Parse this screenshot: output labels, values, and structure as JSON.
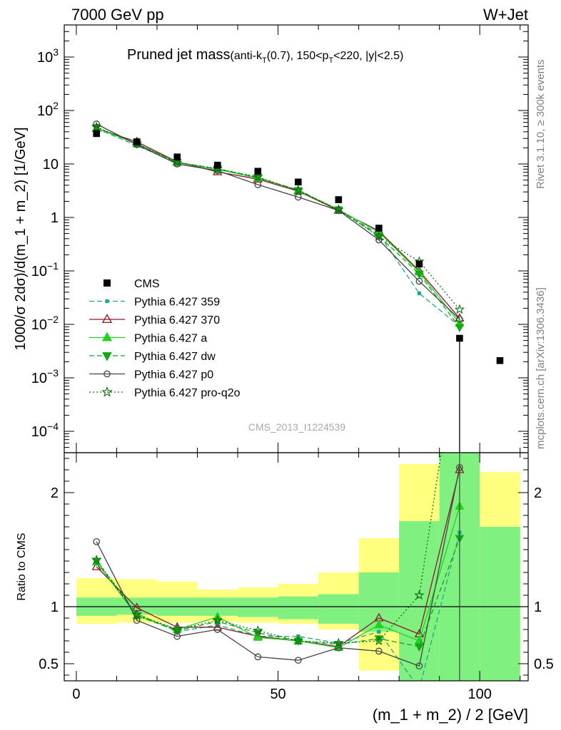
{
  "header": {
    "left": "7000 GeV pp",
    "right": "W+Jet"
  },
  "side": {
    "rivet": "Rivet 3.1.10, ≥ 300k events",
    "mcplots": "mcplots.cern.ch [arXiv:1306.3436]"
  },
  "title": {
    "main": "Pruned jet mass",
    "a": "(anti-k",
    "b": "T",
    "c": "(0.7), 150<p",
    "d": "T",
    "e": "<220, |y|<2.5)"
  },
  "watermark": "CMS_2013_I1224539",
  "colors": {
    "cms": "#000000",
    "p359": "#1aa889",
    "p370": "#8b1a2b",
    "pa": "#22d422",
    "pdw": "#14a814",
    "pp0": "#444444",
    "pq2o": "#0f6e0f",
    "band_stat": "#80f080",
    "band_tot": "#ffff80"
  },
  "chart_data": [
    {
      "type": "scatter",
      "xlim": [
        -3,
        112
      ],
      "ylim_log10": [
        -4.4,
        3.6
      ],
      "ylog": true,
      "ylabel": "1000/σ 2dσ)/d(m_1 + m_2) [1/GeV]",
      "yticks": [
        {
          "v": 3,
          "base": "10",
          "exp": "3"
        },
        {
          "v": 2,
          "base": "10",
          "exp": "2"
        },
        {
          "v": 1,
          "base": "10",
          "exp": ""
        },
        {
          "v": 0,
          "base": "1",
          "exp": ""
        },
        {
          "v": -1,
          "base": "10",
          "exp": "−1"
        },
        {
          "v": -2,
          "base": "10",
          "exp": "−2"
        },
        {
          "v": -3,
          "base": "10",
          "exp": "−3"
        },
        {
          "v": -4,
          "base": "10",
          "exp": "−4"
        }
      ],
      "cms": {
        "name": "CMS",
        "x": [
          5,
          15,
          25,
          35,
          45,
          55,
          65,
          75,
          85,
          95,
          105
        ],
        "y": [
          37,
          26,
          13.5,
          9.5,
          7.3,
          4.6,
          2.15,
          0.63,
          0.135,
          0.0055,
          0.0021
        ]
      },
      "series": [
        {
          "key": "p359",
          "name": "Pythia 6.427 359",
          "marker": "square",
          "dash": "7,4",
          "x": [
            5,
            15,
            25,
            35,
            45,
            55,
            65,
            75,
            85,
            95
          ],
          "y": [
            46,
            22,
            10.5,
            8.0,
            5.4,
            3.3,
            1.35,
            0.49,
            0.038,
            0.0092
          ]
        },
        {
          "key": "p370",
          "name": "Pythia 6.427 370",
          "marker": "triangle-open",
          "dash": "",
          "x": [
            5,
            15,
            25,
            35,
            45,
            55,
            65,
            75,
            85,
            95
          ],
          "y": [
            46,
            26,
            11,
            7.1,
            5.2,
            3.1,
            1.35,
            0.56,
            0.1,
            0.013
          ]
        },
        {
          "key": "pa",
          "name": "Pythia 6.427 a",
          "marker": "triangle",
          "dash": "",
          "x": [
            5,
            15,
            25,
            35,
            45,
            55,
            65,
            75,
            85,
            95
          ],
          "y": [
            47,
            24,
            10.7,
            7.9,
            5.5,
            3.2,
            1.4,
            0.53,
            0.095,
            0.0105
          ]
        },
        {
          "key": "pdw",
          "name": "Pythia 6.427 dw",
          "marker": "triangle-down",
          "dash": "7,4",
          "x": [
            5,
            15,
            25,
            35,
            45,
            55,
            65,
            75,
            85,
            95
          ],
          "y": [
            48,
            24,
            10.8,
            8.1,
            5.6,
            3.2,
            1.4,
            0.45,
            0.088,
            0.0088
          ]
        },
        {
          "key": "pp0",
          "name": "Pythia 6.427 p0",
          "marker": "circle-open",
          "dash": "",
          "x": [
            5,
            15,
            25,
            35,
            45,
            55,
            65,
            75,
            85,
            95
          ],
          "y": [
            56,
            23,
            10.0,
            7.5,
            4.1,
            2.4,
            1.35,
            0.38,
            0.064,
            0.0125
          ]
        },
        {
          "key": "pq2o",
          "name": "Pythia 6.427 pro-q2o",
          "marker": "star",
          "dash": "2,3",
          "x": [
            5,
            15,
            25,
            35,
            45,
            55,
            65,
            75,
            85,
            95
          ],
          "y": [
            49,
            24,
            10.6,
            8.2,
            5.7,
            3.2,
            1.4,
            0.44,
            0.15,
            0.019
          ]
        }
      ]
    },
    {
      "type": "line",
      "xlim": [
        -3,
        112
      ],
      "ylim": [
        0.35,
        2.35
      ],
      "ylabel": "Ratio to CMS",
      "xlabel": "(m_1 + m_2) / 2 [GeV]",
      "xticks": [
        0,
        50,
        100
      ],
      "yticks": [
        0.5,
        1,
        2
      ],
      "bands": [
        {
          "x0": 0,
          "x1": 10,
          "stat": [
            0.92,
            1.08
          ],
          "tot": [
            0.85,
            1.25
          ]
        },
        {
          "x0": 10,
          "x1": 20,
          "stat": [
            0.93,
            1.08
          ],
          "tot": [
            0.86,
            1.24
          ]
        },
        {
          "x0": 20,
          "x1": 30,
          "stat": [
            0.92,
            1.08
          ],
          "tot": [
            0.86,
            1.22
          ]
        },
        {
          "x0": 30,
          "x1": 40,
          "stat": [
            0.92,
            1.08
          ],
          "tot": [
            0.87,
            1.15
          ]
        },
        {
          "x0": 40,
          "x1": 50,
          "stat": [
            0.91,
            1.08
          ],
          "tot": [
            0.86,
            1.17
          ]
        },
        {
          "x0": 50,
          "x1": 60,
          "stat": [
            0.89,
            1.09
          ],
          "tot": [
            0.85,
            1.2
          ]
        },
        {
          "x0": 60,
          "x1": 70,
          "stat": [
            0.85,
            1.11
          ],
          "tot": [
            0.8,
            1.3
          ]
        },
        {
          "x0": 70,
          "x1": 80,
          "stat": [
            0.78,
            1.3
          ],
          "tot": [
            0.44,
            1.6
          ]
        },
        {
          "x0": 80,
          "x1": 90,
          "stat": [
            0.35,
            1.75
          ],
          "tot": [
            0.35,
            2.25
          ]
        },
        {
          "x0": 90,
          "x1": 100,
          "stat": [
            0.35,
            2.35
          ],
          "tot": [
            0.35,
            2.35
          ]
        },
        {
          "x0": 100,
          "x1": 110,
          "stat": [
            0.35,
            1.7
          ],
          "tot": [
            0.35,
            2.18
          ]
        }
      ],
      "x": [
        5,
        15,
        25,
        35,
        45,
        55,
        65,
        75,
        85,
        95
      ],
      "series": [
        {
          "key": "p359",
          "y": [
            1.4,
            0.94,
            0.78,
            0.84,
            0.74,
            0.74,
            0.68,
            0.78,
            0.28,
            1.65
          ]
        },
        {
          "key": "p370",
          "y": [
            1.35,
            0.99,
            0.82,
            0.82,
            0.74,
            0.7,
            0.65,
            0.9,
            0.76,
            2.2
          ]
        },
        {
          "key": "pa",
          "y": [
            1.39,
            0.92,
            0.8,
            0.91,
            0.73,
            0.7,
            0.64,
            0.84,
            0.7,
            1.88
          ]
        },
        {
          "key": "pdw",
          "y": [
            1.4,
            0.92,
            0.79,
            0.87,
            0.77,
            0.7,
            0.67,
            0.72,
            0.65,
            1.6
          ]
        },
        {
          "key": "pp0",
          "y": [
            1.57,
            0.88,
            0.74,
            0.8,
            0.56,
            0.53,
            0.64,
            0.61,
            0.48,
            2.22
          ]
        },
        {
          "key": "pq2o",
          "y": [
            1.41,
            0.93,
            0.8,
            0.88,
            0.79,
            0.7,
            0.68,
            0.7,
            1.1,
            3.4
          ]
        }
      ]
    }
  ]
}
